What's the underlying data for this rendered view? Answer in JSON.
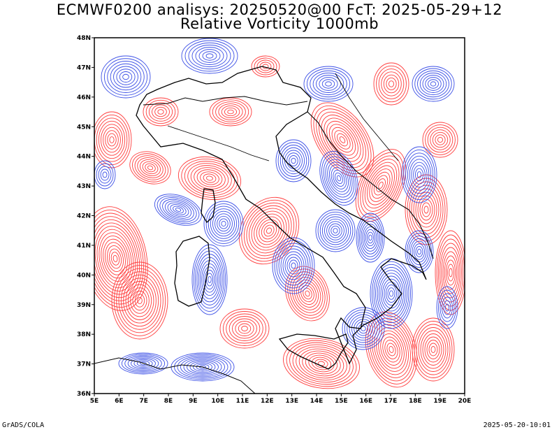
{
  "header": {
    "title_line1": "ECMWF0200 analisys: 20250520@00 FcT: 2025-05-29+12",
    "title_line2": "Relative Vorticity 1000mb"
  },
  "footer": {
    "left": "GrADS/COLA",
    "right": "2025-05-20-10:01"
  },
  "map": {
    "lon_range": [
      5,
      20
    ],
    "lat_range": [
      36,
      48
    ],
    "lat_labels": [
      "48N",
      "47N",
      "46N",
      "45N",
      "44N",
      "43N",
      "42N",
      "41N",
      "40N",
      "39N",
      "38N",
      "37N",
      "36N"
    ],
    "lon_labels": [
      "5E",
      "6E",
      "7E",
      "8E",
      "9E",
      "10E",
      "11E",
      "12E",
      "13E",
      "14E",
      "15E",
      "16E",
      "17E",
      "18E",
      "19E",
      "20E"
    ],
    "colors": {
      "positive_contours": "#ff3c3c",
      "negative_contours": "#3c50e6",
      "coastline": "#000000",
      "frame": "#000000"
    }
  }
}
